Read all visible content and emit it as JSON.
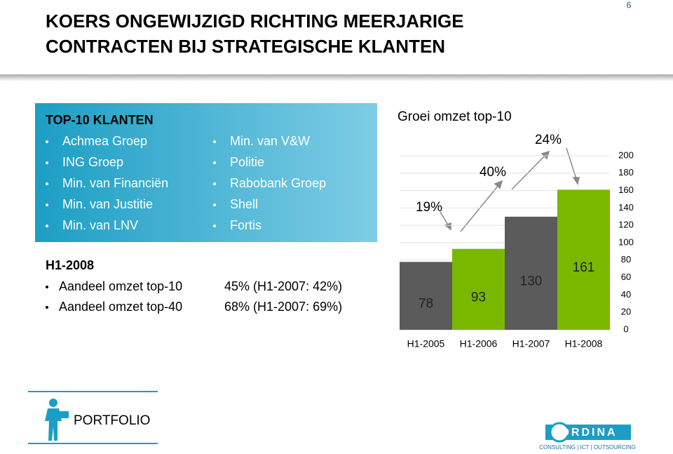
{
  "page_number": "6",
  "title": [
    "KOERS ONGEWIJZIGD RICHTING MEERJARIGE",
    "CONTRACTEN BIJ STRATEGISCHE KLANTEN"
  ],
  "clients": {
    "title": "TOP-10 KLANTEN",
    "left": [
      "Achmea Groep",
      "ING Groep",
      "Min. van Financiën",
      "Min. van Justitie",
      "Min. van LNV"
    ],
    "right": [
      "Min. van V&W",
      "Politie",
      "Rabobank Groep",
      "Shell",
      "Fortis"
    ]
  },
  "h1": {
    "title": "H1-2008",
    "rows": [
      [
        "Aandeel omzet top-10",
        "45% (H1-2007: 42%)"
      ],
      [
        "Aandeel omzet top-40",
        "68% (H1-2007: 69%)"
      ]
    ]
  },
  "chart_data": {
    "type": "bar",
    "title": "Groei omzet top-10",
    "categories": [
      "H1-2005",
      "H1-2006",
      "H1-2007",
      "H1-2008"
    ],
    "values": [
      78,
      93,
      130,
      161
    ],
    "colors": [
      "#5b5b5b",
      "#7ab800",
      "#5b5b5b",
      "#7ab800"
    ],
    "ylim": [
      0,
      200
    ],
    "yticks": [
      0,
      20,
      40,
      60,
      80,
      100,
      120,
      140,
      160,
      180,
      200
    ],
    "grid": true,
    "annotations": [
      "19%",
      "40%",
      "24%"
    ]
  },
  "footer": {
    "section": "PORTFOLIO",
    "logo": "ORDINA",
    "tagline": "CONSULTING | ICT | OUTSOURCING"
  }
}
